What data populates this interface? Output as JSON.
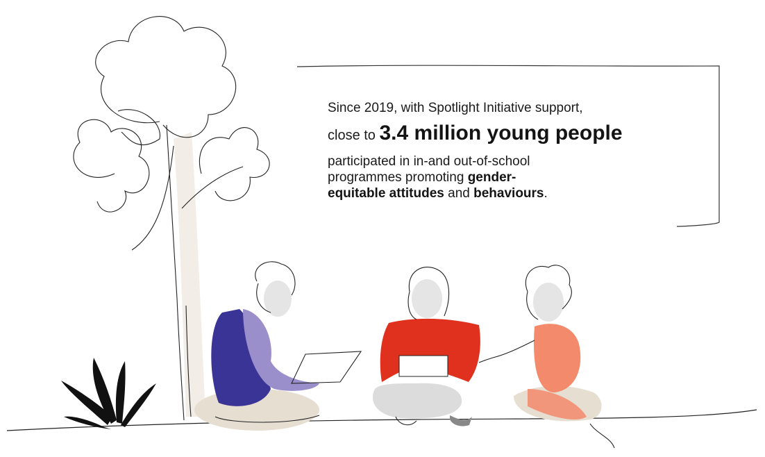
{
  "stat": {
    "intro": "Since 2019, with Spotlight Initiative support,",
    "lead": "close to",
    "highlight": "3.4 million young people",
    "body_start": "participated in in-and out-of-school programmes promoting",
    "bold1": "gender-equitable attitudes",
    "mid": "and",
    "bold2": "behaviours",
    "end": "."
  },
  "colors": {
    "purple_dark": "#3b3497",
    "purple_light": "#9b8fcb",
    "red": "#e0311f",
    "orange": "#f28a6b",
    "beige": "#e7ded2",
    "grey": "#dcdcdc",
    "black": "#111111"
  },
  "illustration": {
    "icons": [
      "tree-icon",
      "plant-icon",
      "person-with-laptop-icon",
      "person-reading-icon",
      "person-pointing-icon"
    ]
  }
}
